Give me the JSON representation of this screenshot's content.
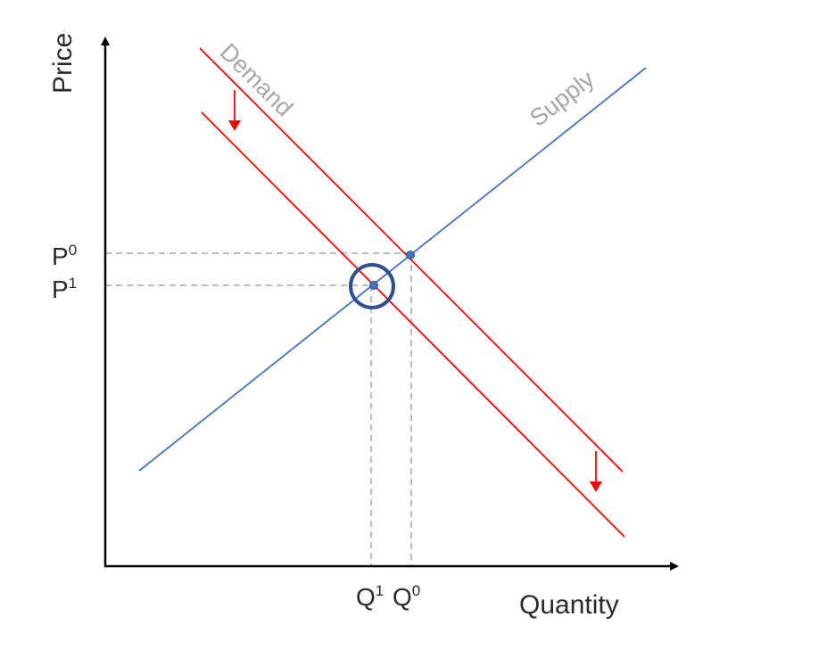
{
  "axes": {
    "y_label": "Price",
    "x_label": "Quantity"
  },
  "curves": {
    "demand_label": "Demand",
    "supply_label": "Supply"
  },
  "price_ticks": {
    "p0": {
      "letter": "P",
      "sup": "0"
    },
    "p1": {
      "letter": "P",
      "sup": "1"
    }
  },
  "quantity_ticks": {
    "q1": {
      "letter": "Q",
      "sup": "1"
    },
    "q0": {
      "letter": "Q",
      "sup": "0"
    }
  },
  "colors": {
    "demand": "#ff0000",
    "supply": "#4472c4",
    "highlight": "#2f4f8f",
    "guide": "#a6a6a6",
    "axis": "#000000"
  }
}
